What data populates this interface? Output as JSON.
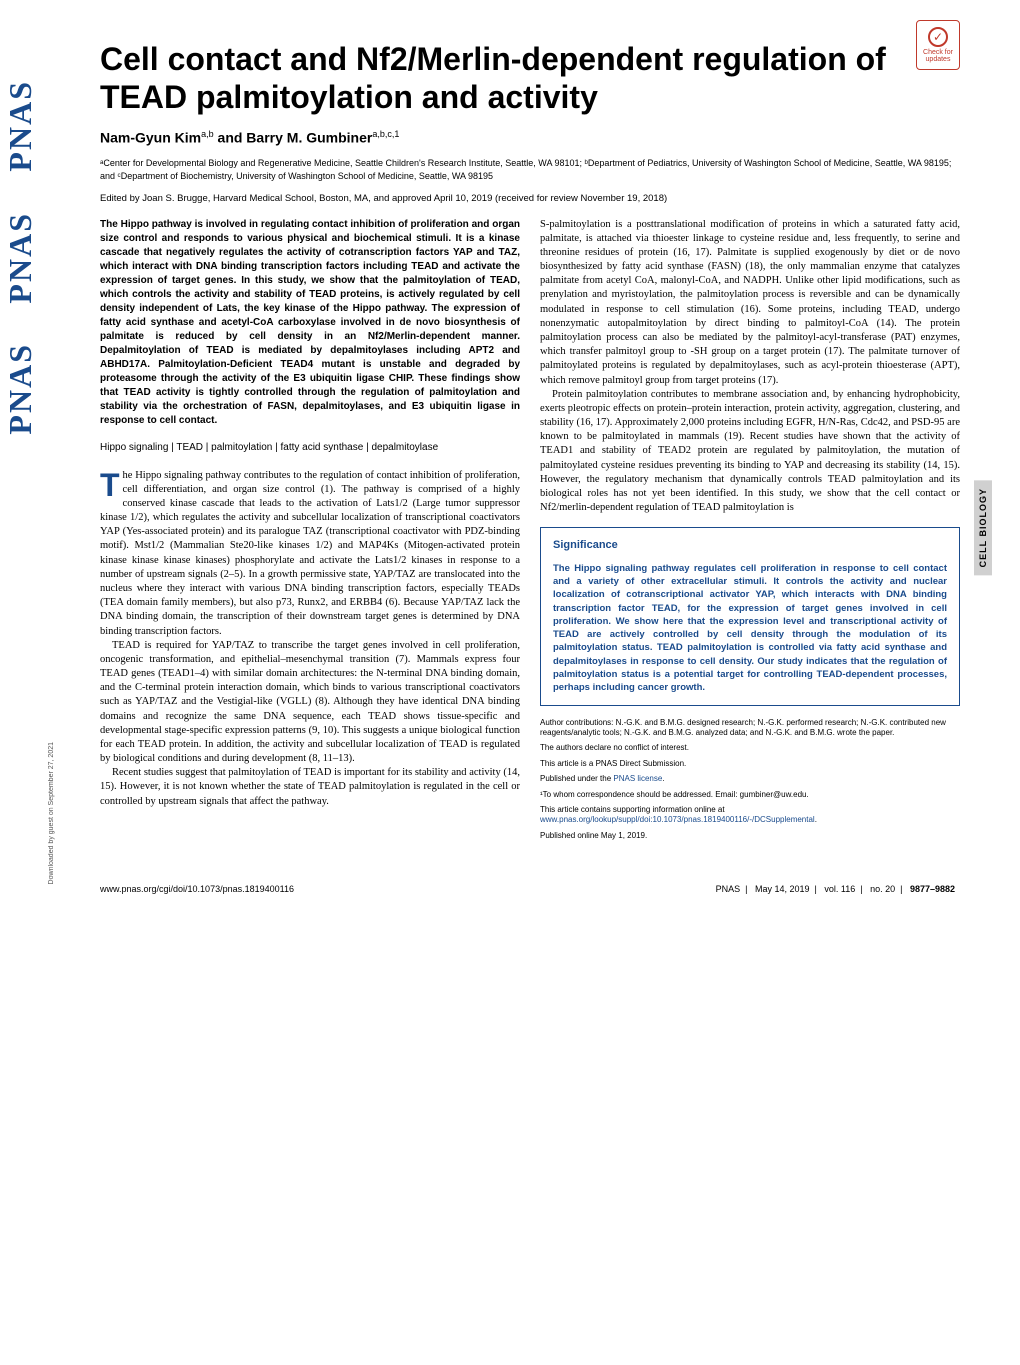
{
  "badge": {
    "line1": "Check for",
    "line2": "updates",
    "mark": "✓"
  },
  "side_label": "CELL BIOLOGY",
  "pnas_logo": "PNAS",
  "download_note": "Downloaded by guest on September 27, 2021",
  "title": "Cell contact and Nf2/Merlin-dependent regulation of TEAD palmitoylation and activity",
  "authors_html": "Nam-Gyun Kim",
  "authors_sup1": "a,b",
  "authors_and": " and Barry M. Gumbiner",
  "authors_sup2": "a,b,c,1",
  "affiliations": "ᵃCenter for Developmental Biology and Regenerative Medicine, Seattle Children's Research Institute, Seattle, WA 98101; ᵇDepartment of Pediatrics, University of Washington School of Medicine, Seattle, WA 98195; and ᶜDepartment of Biochemistry, University of Washington School of Medicine, Seattle, WA 98195",
  "edited_by": "Edited by Joan S. Brugge, Harvard Medical School, Boston, MA, and approved April 10, 2019 (received for review November 19, 2018)",
  "abstract": "The Hippo pathway is involved in regulating contact inhibition of proliferation and organ size control and responds to various physical and biochemical stimuli. It is a kinase cascade that negatively regulates the activity of cotranscription factors YAP and TAZ, which interact with DNA binding transcription factors including TEAD and activate the expression of target genes. In this study, we show that the palmitoylation of TEAD, which controls the activity and stability of TEAD proteins, is actively regulated by cell density independent of Lats, the key kinase of the Hippo pathway. The expression of fatty acid synthase and acetyl-CoA carboxylase involved in de novo biosynthesis of palmitate is reduced by cell density in an Nf2/Merlin-dependent manner. Depalmitoylation of TEAD is mediated by depalmitoylases including APT2 and ABHD17A. Palmitoylation-Deficient TEAD4 mutant is unstable and degraded by proteasome through the activity of the E3 ubiquitin ligase CHIP. These findings show that TEAD activity is tightly controlled through the regulation of palmitoylation and stability via the orchestration of FASN, depalmitoylases, and E3 ubiquitin ligase in response to cell contact.",
  "keywords": "Hippo signaling | TEAD | palmitoylation | fatty acid synthase | depalmitoylase",
  "col1_p1_drop": "T",
  "col1_p1": "he Hippo signaling pathway contributes to the regulation of contact inhibition of proliferation, cell differentiation, and organ size control (1). The pathway is comprised of a highly conserved kinase cascade that leads to the activation of Lats1/2 (Large tumor suppressor kinase 1/2), which regulates the activity and subcellular localization of transcriptional coactivators YAP (Yes-associated protein) and its paralogue TAZ (transcriptional coactivator with PDZ-binding motif). Mst1/2 (Mammalian Ste20-like kinases 1/2) and MAP4Ks (Mitogen-activated protein kinase kinase kinase kinases) phosphorylate and activate the Lats1/2 kinases in response to a number of upstream signals (2–5). In a growth permissive state, YAP/TAZ are translocated into the nucleus where they interact with various DNA binding transcription factors, especially TEADs (TEA domain family members), but also p73, Runx2, and ERBB4 (6). Because YAP/TAZ lack the DNA binding domain, the transcription of their downstream target genes is determined by DNA binding transcription factors.",
  "col1_p2": "TEAD is required for YAP/TAZ to transcribe the target genes involved in cell proliferation, oncogenic transformation, and epithelial–mesenchymal transition (7). Mammals express four TEAD genes (TEAD1–4) with similar domain architectures: the N-terminal DNA binding domain, and the C-terminal protein interaction domain, which binds to various transcriptional coactivators such as YAP/TAZ and the Vestigial-like (VGLL) (8). Although they have identical DNA binding domains and recognize the same DNA sequence, each TEAD shows tissue-specific and developmental stage-specific expression patterns (9, 10). This suggests a unique biological function for each TEAD protein. In addition, the activity and subcellular localization of TEAD is regulated by biological conditions and during development (8, 11–13).",
  "col1_p3": "Recent studies suggest that palmitoylation of TEAD is important for its stability and activity (14, 15). However, it is not known whether the state of TEAD palmitoylation is regulated in the cell or controlled by upstream signals that affect the pathway.",
  "col2_p1": "S-palmitoylation is a posttranslational modification of proteins in which a saturated fatty acid, palmitate, is attached via thioester linkage to cysteine residue and, less frequently, to serine and threonine residues of protein (16, 17). Palmitate is supplied exogenously by diet or de novo biosynthesized by fatty acid synthase (FASN) (18), the only mammalian enzyme that catalyzes palmitate from acetyl CoA, malonyl-CoA, and NADPH. Unlike other lipid modifications, such as prenylation and myristoylation, the palmitoylation process is reversible and can be dynamically modulated in response to cell stimulation (16). Some proteins, including TEAD, undergo nonenzymatic autopalmitoylation by direct binding to palmitoyl-CoA (14). The protein palmitoylation process can also be mediated by the palmitoyl-acyl-transferase (PAT) enzymes, which transfer palmitoyl group to -SH group on a target protein (17). The palmitate turnover of palmitoylated proteins is regulated by depalmitoylases, such as acyl-protein thioesterase (APT), which remove palmitoyl group from target proteins (17).",
  "col2_p2": "Protein palmitoylation contributes to membrane association and, by enhancing hydrophobicity, exerts pleotropic effects on protein–protein interaction, protein activity, aggregation, clustering, and stability (16, 17). Approximately 2,000 proteins including EGFR, H/N-Ras, Cdc42, and PSD-95 are known to be palmitoylated in mammals (19). Recent studies have shown that the activity of TEAD1 and stability of TEAD2 protein are regulated by palmitoylation, the mutation of palmitoylated cysteine residues preventing its binding to YAP and decreasing its stability (14, 15). However, the regulatory mechanism that dynamically controls TEAD palmitoylation and its biological roles has not yet been identified. In this study, we show that the cell contact or Nf2/merlin-dependent regulation of TEAD palmitoylation is",
  "significance": {
    "heading": "Significance",
    "body": "The Hippo signaling pathway regulates cell proliferation in response to cell contact and a variety of other extracellular stimuli. It controls the activity and nuclear localization of cotranscriptional activator YAP, which interacts with DNA binding transcription factor TEAD, for the expression of target genes involved in cell proliferation. We show here that the expression level and transcriptional activity of TEAD are actively controlled by cell density through the modulation of its palmitoylation status. TEAD palmitoylation is controlled via fatty acid synthase and depalmitoylases in response to cell density. Our study indicates that the regulation of palmitoylation status is a potential target for controlling TEAD-dependent processes, perhaps including cancer growth."
  },
  "notes": {
    "contrib": "Author contributions: N.-G.K. and B.M.G. designed research; N.-G.K. performed research; N.-G.K. contributed new reagents/analytic tools; N.-G.K. and B.M.G. analyzed data; and N.-G.K. and B.M.G. wrote the paper.",
    "conflict": "The authors declare no conflict of interest.",
    "submission": "This article is a PNAS Direct Submission.",
    "license_pre": "Published under the ",
    "license_link": "PNAS license",
    "license_post": ".",
    "correspond": "¹To whom correspondence should be addressed. Email: gumbiner@uw.edu.",
    "supp_pre": "This article contains supporting information online at ",
    "supp_link": "www.pnas.org/lookup/suppl/doi:10.1073/pnas.1819400116/-/DCSupplemental",
    "supp_post": ".",
    "pub": "Published online May 1, 2019."
  },
  "footer": {
    "left": "www.pnas.org/cgi/doi/10.1073/pnas.1819400116",
    "journal": "PNAS",
    "date": "May 14, 2019",
    "vol": "vol. 116",
    "no": "no. 20",
    "pages": "9877–9882"
  }
}
